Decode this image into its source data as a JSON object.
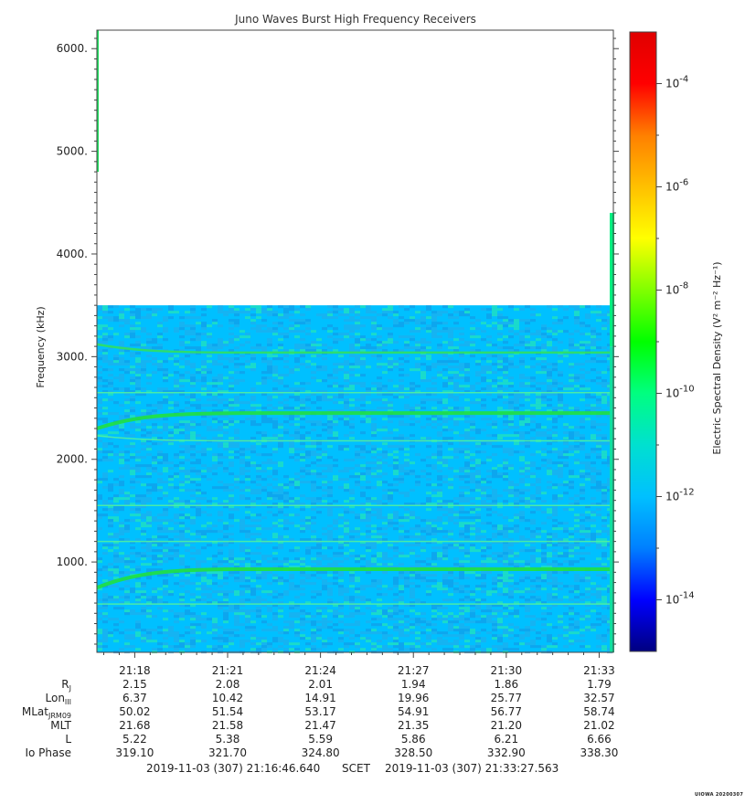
{
  "chart_data": {
    "type": "heatmap",
    "title": "Juno Waves Burst High Frequency Receivers",
    "ylabel": "Frequency (kHz)",
    "ylim": [
      120,
      6180
    ],
    "yticks": [
      "1000.",
      "2000.",
      "3000.",
      "4000.",
      "5000.",
      "6000."
    ],
    "ytick_values": [
      1000,
      2000,
      3000,
      4000,
      5000,
      6000
    ],
    "x_ticks": [
      "21:18",
      "21:21",
      "21:24",
      "21:27",
      "21:30",
      "21:33"
    ],
    "x_tick_minutes": [
      18,
      21,
      24,
      27,
      30,
      33
    ],
    "xlim_minutes": [
      16.778,
      33.459
    ],
    "colorbar": {
      "label": "Electric Spectral Density (V² m⁻² Hz⁻¹)",
      "scale": "log",
      "range_exp": [
        -15,
        -3
      ],
      "ticks": [
        "10^-4",
        "10^-6",
        "10^-8",
        "10^-10",
        "10^-12",
        "10^-14"
      ],
      "tick_exp": [
        -4,
        -6,
        -8,
        -10,
        -12,
        -14
      ],
      "colors": [
        "#000080",
        "#0000ff",
        "#0080ff",
        "#00c0ff",
        "#00e0d0",
        "#00ff80",
        "#00ff00",
        "#80ff00",
        "#ffff00",
        "#ffc000",
        "#ff8000",
        "#ff0000",
        "#e00000"
      ]
    },
    "background_level_exp": -12,
    "data_upper_freq_khz": 3500,
    "emission_lines_khz": [
      {
        "start": 3120,
        "end": 3040,
        "strength": "medium"
      },
      {
        "start": 2300,
        "end": 2450,
        "strength": "strong"
      },
      {
        "start": 2230,
        "end": 2180,
        "strength": "weak"
      },
      {
        "start": 2650,
        "end": 2650,
        "strength": "weak"
      },
      {
        "start": 1550,
        "end": 1550,
        "strength": "weak"
      },
      {
        "start": 1200,
        "end": 1200,
        "strength": "weak"
      },
      {
        "start": 750,
        "end": 930,
        "strength": "strong"
      },
      {
        "start": 590,
        "end": 590,
        "strength": "weak"
      }
    ]
  },
  "ephemeris": {
    "rows": [
      {
        "label": "R",
        "sub": "J",
        "values": [
          "2.15",
          "2.08",
          "2.01",
          "1.94",
          "1.86",
          "1.79"
        ]
      },
      {
        "label": "Lon",
        "sub": "III",
        "values": [
          "6.37",
          "10.42",
          "14.91",
          "19.96",
          "25.77",
          "32.57"
        ]
      },
      {
        "label": "MLat",
        "sub": "JRM09",
        "values": [
          "50.02",
          "51.54",
          "53.17",
          "54.91",
          "56.77",
          "58.74"
        ]
      },
      {
        "label": "MLT",
        "sub": "",
        "values": [
          "21.68",
          "21.58",
          "21.47",
          "21.35",
          "21.20",
          "21.02"
        ]
      },
      {
        "label": "L",
        "sub": "",
        "values": [
          "5.22",
          "5.38",
          "5.59",
          "5.86",
          "6.21",
          "6.66"
        ]
      },
      {
        "label": "Io Phase",
        "sub": "",
        "values": [
          "319.10",
          "321.70",
          "324.80",
          "328.50",
          "332.90",
          "338.30"
        ]
      }
    ]
  },
  "footer": {
    "start": "2019-11-03 (307) 21:16:46.640",
    "frame": "SCET",
    "end": "2019-11-03 (307) 21:33:27.563"
  },
  "stamp": "UIOWA 20200307"
}
